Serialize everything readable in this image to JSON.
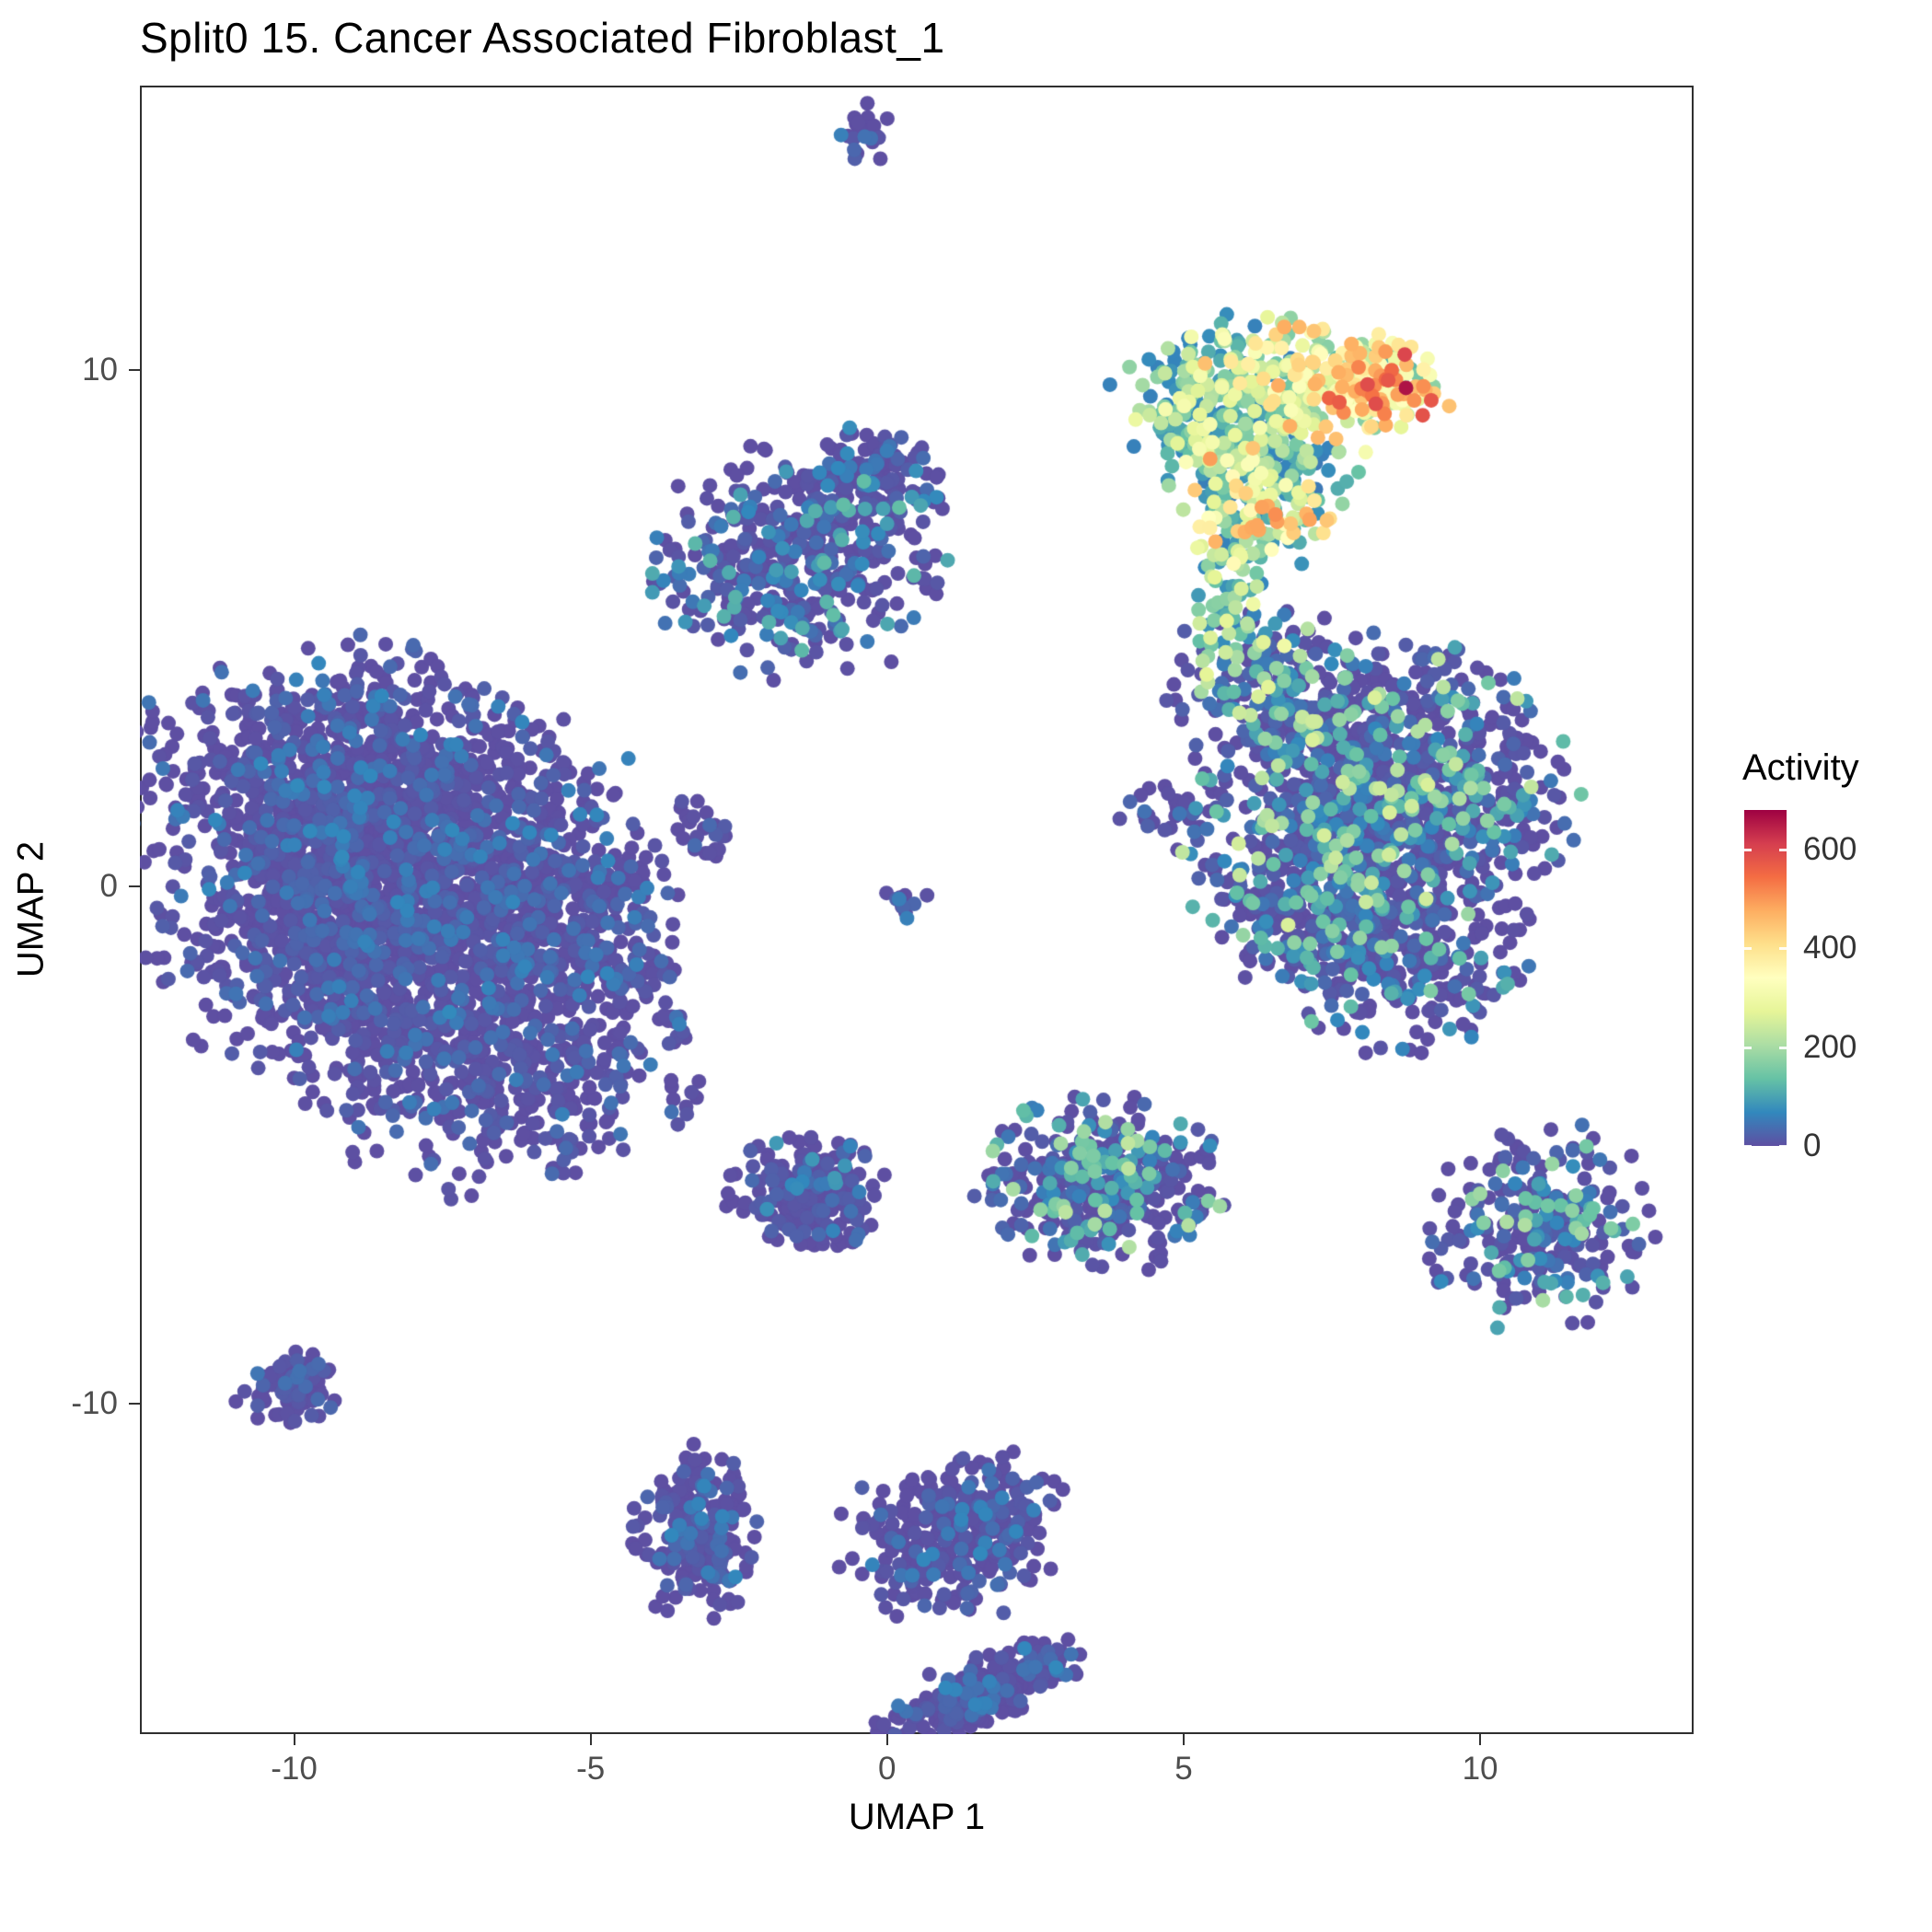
{
  "title": "Split0 15. Cancer Associated Fibroblast_1",
  "axes": {
    "x": {
      "label": "UMAP 1",
      "ticks": [
        -10,
        -5,
        0,
        5,
        10
      ],
      "range": [
        -12.6,
        13.6
      ]
    },
    "y": {
      "label": "UMAP 2",
      "ticks": [
        10,
        0,
        -10
      ],
      "range": [
        -16.4,
        15.5
      ]
    }
  },
  "legend": {
    "title": "Activity",
    "ticks": [
      0,
      200,
      400,
      600
    ]
  },
  "colormap": {
    "name": "Spectral (reversed)",
    "domain": [
      0,
      680
    ],
    "stops": [
      {
        "t": 0.0,
        "c": "#5E4FA2"
      },
      {
        "t": 0.1,
        "c": "#3288BD"
      },
      {
        "t": 0.2,
        "c": "#66C2A5"
      },
      {
        "t": 0.3,
        "c": "#ABDDA4"
      },
      {
        "t": 0.4,
        "c": "#E6F598"
      },
      {
        "t": 0.5,
        "c": "#FFFFBF"
      },
      {
        "t": 0.6,
        "c": "#FEE08B"
      },
      {
        "t": 0.7,
        "c": "#FDAE61"
      },
      {
        "t": 0.8,
        "c": "#F46D43"
      },
      {
        "t": 0.9,
        "c": "#D53E4F"
      },
      {
        "t": 1.0,
        "c": "#9E0142"
      }
    ]
  },
  "chart_data": {
    "type": "scatter",
    "title": "Split0 15. Cancer Associated Fibroblast_1",
    "xlabel": "UMAP 1",
    "ylabel": "UMAP 2",
    "xlim": [
      -12.6,
      13.6
    ],
    "ylim": [
      -16.4,
      15.5
    ],
    "grid": false,
    "legend_position": "right",
    "color_legend": {
      "title": "Activity",
      "ticks": [
        0,
        200,
        400,
        600
      ],
      "domain": [
        0,
        680
      ]
    },
    "seed": 42,
    "clusters": [
      {
        "name": "tiny-top-blob",
        "cx": -0.45,
        "cy": 14.6,
        "sx": 0.22,
        "sy": 0.28,
        "n": 22,
        "act": [
          0,
          60,
          6
        ]
      },
      {
        "name": "caf-hot-top-left",
        "cx": 5.6,
        "cy": 9.3,
        "sx": 0.8,
        "sy": 0.8,
        "n": 220,
        "act": [
          60,
          330,
          1.8
        ]
      },
      {
        "name": "caf-hot-top-mid",
        "cx": 7.2,
        "cy": 9.8,
        "sx": 0.9,
        "sy": 0.55,
        "n": 200,
        "act": [
          120,
          480,
          1.5
        ]
      },
      {
        "name": "caf-hot-tip",
        "cx": 8.3,
        "cy": 9.6,
        "sx": 0.55,
        "sy": 0.45,
        "n": 90,
        "act": [
          220,
          600,
          1.2
        ]
      },
      {
        "name": "caf-hot-mid",
        "cx": 6.3,
        "cy": 8.3,
        "sx": 0.8,
        "sy": 0.6,
        "n": 150,
        "act": [
          50,
          330,
          2.0
        ]
      },
      {
        "name": "caf-hot-lower",
        "cx": 6.2,
        "cy": 7.2,
        "sx": 0.55,
        "sy": 0.55,
        "n": 110,
        "act": [
          80,
          500,
          1.8
        ]
      },
      {
        "name": "caf-trail",
        "cx": 5.9,
        "cy": 6.0,
        "sx": 0.35,
        "sy": 0.7,
        "n": 40,
        "act": [
          60,
          300,
          1.5
        ]
      },
      {
        "name": "caf-trail-sparse",
        "cx": 5.6,
        "cy": 4.9,
        "sx": 0.3,
        "sy": 0.7,
        "n": 12,
        "act": [
          80,
          280,
          1.2
        ]
      },
      {
        "name": "midtop-purple-main",
        "cx": -1.5,
        "cy": 6.3,
        "sx": 1.15,
        "sy": 1.0,
        "n": 430,
        "act": [
          0,
          140,
          5
        ]
      },
      {
        "name": "midtop-purple-ext",
        "cx": -0.2,
        "cy": 7.9,
        "sx": 0.55,
        "sy": 0.5,
        "n": 120,
        "act": [
          0,
          120,
          5
        ]
      },
      {
        "name": "bigleft-a",
        "cx": -9.3,
        "cy": 1.8,
        "sx": 1.6,
        "sy": 1.3,
        "n": 900,
        "act": [
          0,
          70,
          6
        ]
      },
      {
        "name": "bigleft-b",
        "cx": -7.5,
        "cy": 0.3,
        "sx": 1.7,
        "sy": 1.5,
        "n": 900,
        "act": [
          0,
          70,
          6
        ]
      },
      {
        "name": "bigleft-c",
        "cx": -9.5,
        "cy": -1.2,
        "sx": 1.3,
        "sy": 1.2,
        "n": 500,
        "act": [
          0,
          60,
          6
        ]
      },
      {
        "name": "bigleft-d",
        "cx": -7.0,
        "cy": -3.2,
        "sx": 1.3,
        "sy": 1.2,
        "n": 450,
        "act": [
          0,
          60,
          6
        ]
      },
      {
        "name": "bigleft-e",
        "cx": -5.6,
        "cy": -1.0,
        "sx": 0.9,
        "sy": 1.1,
        "n": 250,
        "act": [
          0,
          60,
          6
        ]
      },
      {
        "name": "bigleft-f",
        "cx": -5.0,
        "cy": -3.8,
        "sx": 0.6,
        "sy": 0.7,
        "n": 60,
        "act": [
          0,
          60,
          6
        ]
      },
      {
        "name": "rightmid-a",
        "cx": 8.3,
        "cy": 2.6,
        "sx": 1.3,
        "sy": 1.0,
        "n": 550,
        "act": [
          0,
          260,
          5.5
        ]
      },
      {
        "name": "rightmid-b",
        "cx": 7.6,
        "cy": 0.8,
        "sx": 1.2,
        "sy": 1.0,
        "n": 450,
        "act": [
          0,
          260,
          5.5
        ]
      },
      {
        "name": "rightmid-c",
        "cx": 8.6,
        "cy": -1.2,
        "sx": 1.0,
        "sy": 0.9,
        "n": 350,
        "act": [
          0,
          200,
          6
        ]
      },
      {
        "name": "rightmid-d",
        "cx": 6.3,
        "cy": 3.9,
        "sx": 0.7,
        "sy": 0.8,
        "n": 150,
        "act": [
          0,
          300,
          3.5
        ]
      },
      {
        "name": "rightmid-e",
        "cx": 10.1,
        "cy": 1.5,
        "sx": 0.7,
        "sy": 0.9,
        "n": 150,
        "act": [
          0,
          180,
          6
        ]
      },
      {
        "name": "rightmid-f",
        "cx": 6.6,
        "cy": -0.6,
        "sx": 0.5,
        "sy": 0.6,
        "n": 80,
        "act": [
          0,
          180,
          6
        ]
      },
      {
        "name": "small-blob-left",
        "cx": -3.1,
        "cy": 1.1,
        "sx": 0.28,
        "sy": 0.33,
        "n": 26,
        "act": [
          0,
          60,
          6
        ]
      },
      {
        "name": "small-blob-center",
        "cx": 0.3,
        "cy": -0.3,
        "sx": 0.2,
        "sy": 0.15,
        "n": 14,
        "act": [
          0,
          60,
          6
        ]
      },
      {
        "name": "small-blob-midleft",
        "cx": -4.3,
        "cy": -1.7,
        "sx": 0.35,
        "sy": 0.3,
        "n": 35,
        "act": [
          0,
          60,
          6
        ]
      },
      {
        "name": "small-blob-midleft2",
        "cx": -3.6,
        "cy": -2.7,
        "sx": 0.2,
        "sy": 0.2,
        "n": 14,
        "act": [
          0,
          60,
          6
        ]
      },
      {
        "name": "small-blob-strays",
        "cx": -3.4,
        "cy": -4.2,
        "sx": 0.3,
        "sy": 0.3,
        "n": 8,
        "act": [
          0,
          60,
          6
        ]
      },
      {
        "name": "small-blob-right",
        "cx": 4.8,
        "cy": 1.45,
        "sx": 0.38,
        "sy": 0.25,
        "n": 30,
        "act": [
          0,
          80,
          6
        ]
      },
      {
        "name": "centerbottom-triangle",
        "cx": -1.3,
        "cy": -6.0,
        "sx": 0.6,
        "sy": 0.55,
        "n": 220,
        "act": [
          0,
          90,
          6
        ]
      },
      {
        "name": "mid-teal-cluster",
        "cx": 3.6,
        "cy": -5.8,
        "sx": 0.95,
        "sy": 0.75,
        "n": 380,
        "act": [
          0,
          230,
          4.5
        ]
      },
      {
        "name": "rightbottom-cluster",
        "cx": 11.0,
        "cy": -6.6,
        "sx": 0.85,
        "sy": 0.9,
        "n": 280,
        "act": [
          0,
          210,
          5.5
        ]
      },
      {
        "name": "farleft-small-blob",
        "cx": -10.1,
        "cy": -9.7,
        "sx": 0.4,
        "sy": 0.3,
        "n": 90,
        "act": [
          0,
          50,
          6
        ]
      },
      {
        "name": "bottom-a",
        "cx": -3.2,
        "cy": -12.5,
        "sx": 0.5,
        "sy": 0.75,
        "n": 240,
        "act": [
          0,
          70,
          6
        ]
      },
      {
        "name": "bottom-b",
        "cx": 1.0,
        "cy": -12.7,
        "sx": 0.8,
        "sy": 0.7,
        "n": 240,
        "act": [
          0,
          70,
          6
        ]
      },
      {
        "name": "bottom-b-ext",
        "cx": 1.9,
        "cy": -12.0,
        "sx": 0.5,
        "sy": 0.5,
        "n": 90,
        "act": [
          0,
          70,
          6
        ]
      },
      {
        "name": "bottom-c-diagonal",
        "cx": 1.6,
        "cy": -15.6,
        "sx": 0.85,
        "sy": 0.32,
        "n": 240,
        "rot": 25,
        "act": [
          0,
          70,
          6
        ]
      }
    ],
    "extra_points": [
      {
        "x": 8.75,
        "y": 9.65,
        "v": 660
      },
      {
        "x": 7.95,
        "y": 10.05,
        "v": 520
      },
      {
        "x": 8.35,
        "y": 9.35,
        "v": 500
      },
      {
        "x": 6.55,
        "y": 7.2,
        "v": 510
      },
      {
        "x": 6.15,
        "y": 6.95,
        "v": 480
      },
      {
        "x": 7.4,
        "y": 8.9,
        "v": 440
      }
    ]
  }
}
